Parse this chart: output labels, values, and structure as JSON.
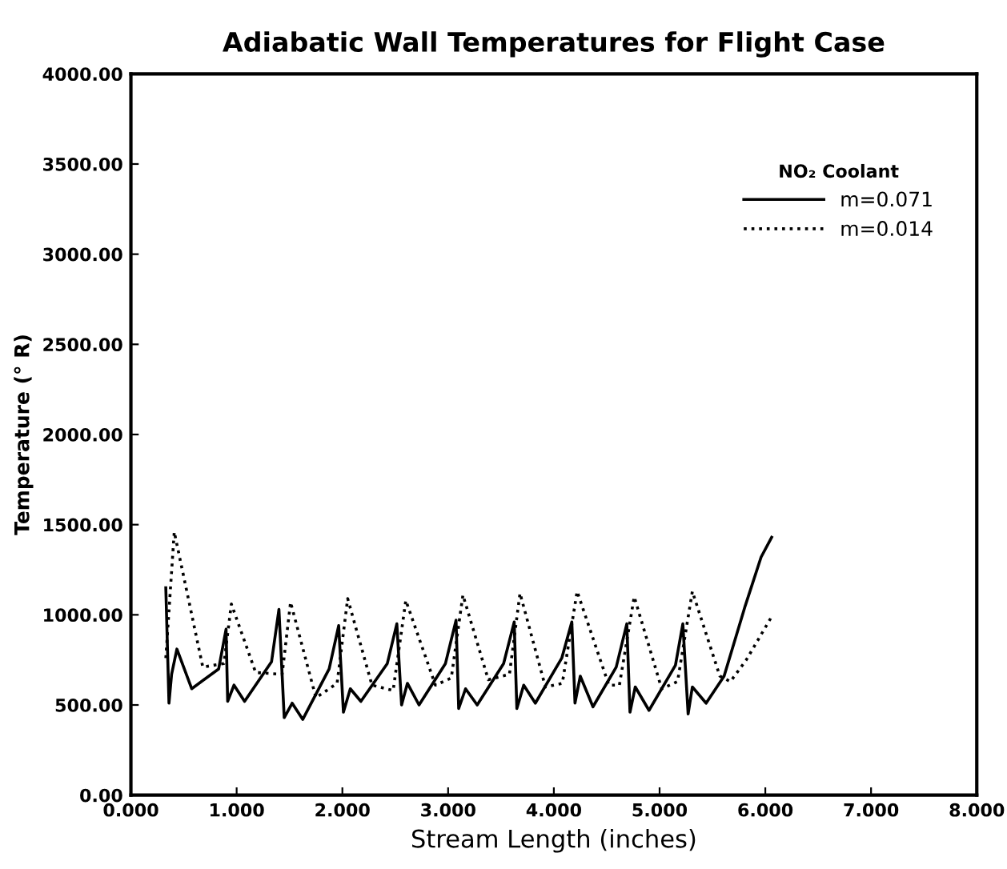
{
  "chart_data": {
    "type": "line",
    "title": "Adiabatic Wall Temperatures for Flight Case",
    "xlabel": "Stream Length (inches)",
    "ylabel": "Temperature (° R)",
    "legend_title": "NO₂ Coolant",
    "legend": "top right",
    "grid": false,
    "marker": "none",
    "xlim": [
      0,
      8
    ],
    "ylim": [
      0,
      4000
    ],
    "xticks": [
      {
        "value": 0,
        "label": "0.000"
      },
      {
        "value": 1,
        "label": "1.000"
      },
      {
        "value": 2,
        "label": "2.000"
      },
      {
        "value": 3,
        "label": "3.000"
      },
      {
        "value": 4,
        "label": "4.000"
      },
      {
        "value": 5,
        "label": "5.000"
      },
      {
        "value": 6,
        "label": "6.000"
      },
      {
        "value": 7,
        "label": "7.000"
      },
      {
        "value": 8,
        "label": "8.000"
      }
    ],
    "yticks": [
      {
        "value": 0,
        "label": "0.00"
      },
      {
        "value": 500,
        "label": "500.00"
      },
      {
        "value": 1000,
        "label": "1000.00"
      },
      {
        "value": 1500,
        "label": "1500.00"
      },
      {
        "value": 2000,
        "label": "2000.00"
      },
      {
        "value": 2500,
        "label": "2500.00"
      },
      {
        "value": 3000,
        "label": "3000.00"
      },
      {
        "value": 3500,
        "label": "3500.00"
      },
      {
        "value": 4000,
        "label": "4000.00"
      }
    ],
    "series": [
      {
        "name": "m=0.071",
        "color": "#000000",
        "line_style": "solid",
        "x": [
          0.33,
          0.36,
          0.385,
          0.435,
          0.575,
          0.83,
          0.9,
          0.915,
          0.975,
          1.075,
          1.33,
          1.4,
          1.45,
          1.525,
          1.625,
          1.875,
          1.965,
          2.01,
          2.075,
          2.175,
          2.425,
          2.515,
          2.56,
          2.615,
          2.725,
          2.975,
          3.075,
          3.1,
          3.165,
          3.275,
          3.525,
          3.625,
          3.65,
          3.715,
          3.825,
          4.075,
          4.17,
          4.2,
          4.25,
          4.37,
          4.59,
          4.69,
          4.72,
          4.77,
          4.9,
          5.15,
          5.22,
          5.27,
          5.31,
          5.44,
          5.61,
          5.81,
          5.96,
          6.06
        ],
        "values": [
          1150,
          510,
          670,
          810,
          590,
          700,
          920,
          520,
          610,
          520,
          740,
          1030,
          430,
          510,
          420,
          700,
          940,
          460,
          590,
          520,
          730,
          950,
          500,
          620,
          500,
          730,
          970,
          480,
          590,
          500,
          730,
          960,
          480,
          610,
          510,
          760,
          960,
          510,
          660,
          490,
          710,
          950,
          460,
          600,
          470,
          720,
          950,
          450,
          600,
          510,
          660,
          1050,
          1320,
          1430
        ]
      },
      {
        "name": "m=0.014",
        "color": "#000000",
        "line_style": "dotted",
        "x": [
          0.33,
          0.41,
          0.68,
          0.88,
          0.95,
          1.18,
          1.43,
          1.51,
          1.75,
          1.95,
          2.05,
          2.28,
          2.48,
          2.6,
          2.88,
          3.03,
          3.14,
          3.38,
          3.58,
          3.68,
          3.92,
          4.08,
          4.22,
          4.52,
          4.62,
          4.76,
          5.02,
          5.17,
          5.31,
          5.57,
          5.67,
          5.82,
          6.06
        ],
        "values": [
          760,
          1460,
          710,
          730,
          1060,
          680,
          670,
          1070,
          540,
          620,
          1090,
          610,
          580,
          1080,
          610,
          650,
          1110,
          640,
          670,
          1120,
          600,
          620,
          1130,
          610,
          610,
          1100,
          590,
          630,
          1130,
          660,
          630,
          750,
          990
        ]
      }
    ]
  }
}
